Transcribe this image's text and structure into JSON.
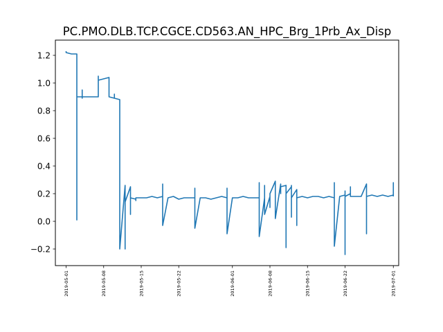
{
  "chart_data": {
    "type": "line",
    "title": "PC.PMO.DLB.TCP.CGCE.CD563.AN_HPC_Brg_1Prb_Ax_Disp",
    "xlabel": "",
    "ylabel": "",
    "xlim": [
      "2019-04-29",
      "2019-07-02"
    ],
    "ylim": [
      -0.32,
      1.31
    ],
    "x_tick_labels": [
      "2019-05-01",
      "2019-05-08",
      "2019-05-15",
      "2019-05-22",
      "2019-06-01",
      "2019-06-08",
      "2019-06-15",
      "2019-06-22",
      "2019-07-01"
    ],
    "y_tick_values": [
      -0.2,
      0.0,
      0.2,
      0.4,
      0.6,
      0.8,
      1.0,
      1.2
    ],
    "y_tick_labels": [
      "−0.2",
      "0.0",
      "0.2",
      "0.4",
      "0.6",
      "0.8",
      "1.0",
      "1.2"
    ],
    "grid": false,
    "legend": "none",
    "series": [
      {
        "color": "#1f77b4",
        "x": [
          "2019-05-01",
          "2019-05-01",
          "2019-05-02",
          "2019-05-02",
          "2019-05-03",
          "2019-05-03",
          "2019-05-03",
          "2019-05-03",
          "2019-05-03",
          "2019-05-03",
          "2019-05-04",
          "2019-05-04",
          "2019-05-04",
          "2019-05-04",
          "2019-05-05",
          "2019-05-06",
          "2019-05-07",
          "2019-05-07",
          "2019-05-07",
          "2019-05-08",
          "2019-05-08",
          "2019-05-09",
          "2019-05-09",
          "2019-05-09",
          "2019-05-10",
          "2019-05-10",
          "2019-05-10",
          "2019-05-11",
          "2019-05-11",
          "2019-05-11",
          "2019-05-11",
          "2019-05-11",
          "2019-05-11",
          "2019-05-11",
          "2019-05-11",
          "2019-05-12",
          "2019-05-12",
          "2019-05-12",
          "2019-05-12",
          "2019-05-12",
          "2019-05-12",
          "2019-05-12",
          "2019-05-13",
          "2019-05-13",
          "2019-05-13",
          "2019-05-13",
          "2019-05-13",
          "2019-05-14",
          "2019-05-14",
          "2019-05-14",
          "2019-05-14",
          "2019-05-15",
          "2019-05-16",
          "2019-05-17",
          "2019-05-18",
          "2019-05-19",
          "2019-05-19",
          "2019-05-19",
          "2019-05-20",
          "2019-05-21",
          "2019-05-22",
          "2019-05-23",
          "2019-05-24",
          "2019-05-25",
          "2019-05-25",
          "2019-05-25",
          "2019-05-26",
          "2019-05-27",
          "2019-05-28",
          "2019-05-29",
          "2019-05-30",
          "2019-05-31",
          "2019-05-31",
          "2019-05-31",
          "2019-06-01",
          "2019-06-02",
          "2019-06-03",
          "2019-06-04",
          "2019-06-05",
          "2019-06-06",
          "2019-06-06",
          "2019-06-06",
          "2019-06-07",
          "2019-06-07",
          "2019-06-07",
          "2019-06-07",
          "2019-06-08",
          "2019-06-08",
          "2019-06-08",
          "2019-06-09",
          "2019-06-09",
          "2019-06-10",
          "2019-06-10",
          "2019-06-10",
          "2019-06-11",
          "2019-06-11",
          "2019-06-11",
          "2019-06-11",
          "2019-06-11",
          "2019-06-11",
          "2019-06-12",
          "2019-06-12",
          "2019-06-12",
          "2019-06-12",
          "2019-06-12",
          "2019-06-13",
          "2019-06-13",
          "2019-06-13",
          "2019-06-14",
          "2019-06-15",
          "2019-06-16",
          "2019-06-17",
          "2019-06-18",
          "2019-06-19",
          "2019-06-20",
          "2019-06-20",
          "2019-06-20",
          "2019-06-21",
          "2019-06-22",
          "2019-06-22",
          "2019-06-22",
          "2019-06-22",
          "2019-06-22",
          "2019-06-22",
          "2019-06-22",
          "2019-06-23",
          "2019-06-23",
          "2019-06-23",
          "2019-06-24",
          "2019-06-25",
          "2019-06-26",
          "2019-06-26",
          "2019-06-26",
          "2019-06-26",
          "2019-06-27",
          "2019-06-28",
          "2019-06-29",
          "2019-06-30",
          "2019-07-01",
          "2019-07-01",
          "2019-07-01"
        ],
        "y": [
          1.23,
          1.22,
          1.21,
          1.21,
          1.21,
          0.01,
          0.88,
          0.9,
          0.9,
          0.9,
          0.9,
          0.95,
          0.89,
          0.9,
          0.9,
          0.9,
          0.9,
          1.05,
          1.02,
          1.03,
          1.03,
          1.04,
          1.0,
          0.9,
          0.89,
          0.92,
          0.89,
          0.88,
          0.02,
          0.02,
          0.19,
          0.01,
          -0.05,
          -0.12,
          -0.2,
          0.26,
          -0.1,
          0.25,
          -0.2,
          0.17,
          0.2,
          0.14,
          0.25,
          0.08,
          0.16,
          0.05,
          0.17,
          0.16,
          0.17,
          0.15,
          0.17,
          0.17,
          0.17,
          0.18,
          0.17,
          0.18,
          0.27,
          -0.03,
          0.17,
          0.18,
          0.16,
          0.17,
          0.17,
          0.17,
          0.24,
          -0.05,
          0.17,
          0.17,
          0.16,
          0.17,
          0.18,
          0.17,
          0.24,
          -0.09,
          0.17,
          0.17,
          0.18,
          0.17,
          0.17,
          0.17,
          0.28,
          -0.11,
          0.17,
          0.18,
          0.26,
          0.05,
          0.18,
          0.1,
          0.2,
          0.29,
          0.02,
          0.27,
          0.2,
          0.25,
          0.26,
          0.26,
          0.05,
          0.0,
          -0.19,
          0.2,
          0.25,
          0.26,
          0.03,
          0.24,
          0.17,
          0.23,
          -0.03,
          0.17,
          0.18,
          0.17,
          0.18,
          0.18,
          0.17,
          0.18,
          0.17,
          0.28,
          -0.18,
          0.18,
          0.19,
          0.22,
          -0.05,
          0.2,
          0.19,
          -0.24,
          0.18,
          0.2,
          0.25,
          0.18,
          0.18,
          0.18,
          0.27,
          -0.09,
          0.18,
          0.18,
          0.19,
          0.18,
          0.19,
          0.18,
          0.19,
          0.28,
          0.18
        ]
      }
    ]
  }
}
